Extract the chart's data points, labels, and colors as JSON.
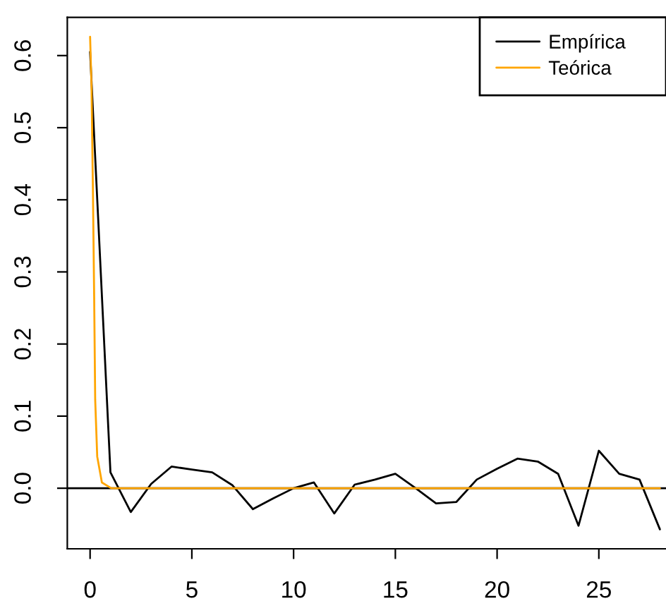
{
  "chart_data": {
    "type": "line",
    "legend": "top right",
    "series": [
      {
        "name": "Empírica",
        "color": "#000000",
        "x": [
          0,
          1,
          2,
          3,
          4,
          5,
          6,
          7,
          8,
          9,
          10,
          11,
          12,
          13,
          14,
          15,
          16,
          17,
          18,
          19,
          20,
          21,
          22,
          23,
          24,
          25,
          26,
          27,
          28
        ],
        "values": [
          0.605,
          0.022,
          -0.033,
          0.006,
          0.03,
          0.026,
          0.022,
          0.004,
          -0.029,
          -0.014,
          0.0,
          0.008,
          -0.035,
          0.005,
          0.012,
          0.02,
          0.0,
          -0.021,
          -0.019,
          0.012,
          0.027,
          0.041,
          0.037,
          0.02,
          -0.052,
          0.052,
          0.02,
          0.012,
          -0.057
        ]
      },
      {
        "name": "Teórica",
        "color": "#ffa500",
        "x": [
          0,
          0.07,
          0.14,
          0.2,
          0.25,
          0.35,
          0.58,
          1.04,
          28
        ],
        "values": [
          0.626,
          0.557,
          0.41,
          0.266,
          0.123,
          0.044,
          0.008,
          0.0,
          0.0
        ]
      }
    ],
    "xlim": [
      -1.12,
      28.3
    ],
    "xticks": [
      0,
      5,
      10,
      15,
      20,
      25
    ],
    "ylim": [
      -0.084,
      0.653
    ],
    "yticks": [
      {
        "value": 0,
        "label": "0.0"
      },
      0.1,
      0.2,
      0.3,
      0.4,
      0.5,
      0.6
    ],
    "ref_lines": [
      {
        "axis": "y",
        "value": 0,
        "color": "#000000"
      }
    ]
  }
}
